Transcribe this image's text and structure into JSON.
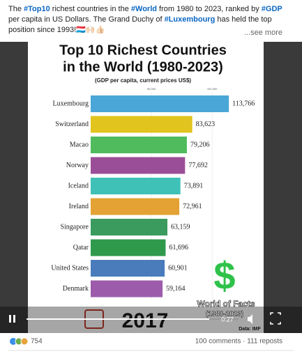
{
  "post": {
    "text": [
      {
        "text": "The ",
        "tag": false
      },
      {
        "text": "#Top10",
        "tag": true
      },
      {
        "text": " richest countries in the ",
        "tag": false
      },
      {
        "text": "#World",
        "tag": true
      },
      {
        "text": " from 1980 to 2023, ranked by ",
        "tag": false
      },
      {
        "text": "#GDP",
        "tag": true
      },
      {
        "text": " per capita in US Dollars. The Grand Duchy of ",
        "tag": false
      },
      {
        "text": "#Luxembourg",
        "tag": true
      },
      {
        "text": " has held the top position since 1993!🇱🇺🙌🏻👍🏻",
        "tag": false
      }
    ],
    "see_more": "...see more"
  },
  "video": {
    "chart_data": {
      "type": "bar",
      "orientation": "horizontal",
      "title": [
        "Top 10 Richest Countries",
        "in the World (1980-2023)"
      ],
      "subtitle": "(GDP per capita, current prices US$)",
      "categories": [
        "Luxembourg",
        "Switzerland",
        "Macao",
        "Norway",
        "Iceland",
        "Ireland",
        "Singapore",
        "Qatar",
        "United States",
        "Denmark"
      ],
      "values": [
        113766,
        83623,
        79206,
        77692,
        73891,
        72961,
        63159,
        61696,
        60901,
        59164
      ],
      "value_labels": [
        "113,766",
        "83,623",
        "79,206",
        "77,692",
        "73,891",
        "72,961",
        "63,159",
        "61,696",
        "60,901",
        "59,164"
      ],
      "colors": [
        "#4aa6d6",
        "#e2c41e",
        "#4fbb5c",
        "#9b4e98",
        "#3fc1b7",
        "#e3a233",
        "#3b9b5e",
        "#2f9a4c",
        "#4a7cbc",
        "#9c5cab"
      ],
      "xlim": [
        0,
        120000
      ],
      "xticks": [
        {
          "value": 50000,
          "label": "50,000"
        },
        {
          "value": 100000,
          "label": "100,000"
        }
      ],
      "grid": true
    },
    "year": "2017",
    "brand": "World of Facts",
    "brand_years": "(1980-2023)",
    "source": "Data: IMF",
    "time": "0:27"
  },
  "social": {
    "reactions": 754,
    "stats": "100 comments · 111 reposts"
  }
}
